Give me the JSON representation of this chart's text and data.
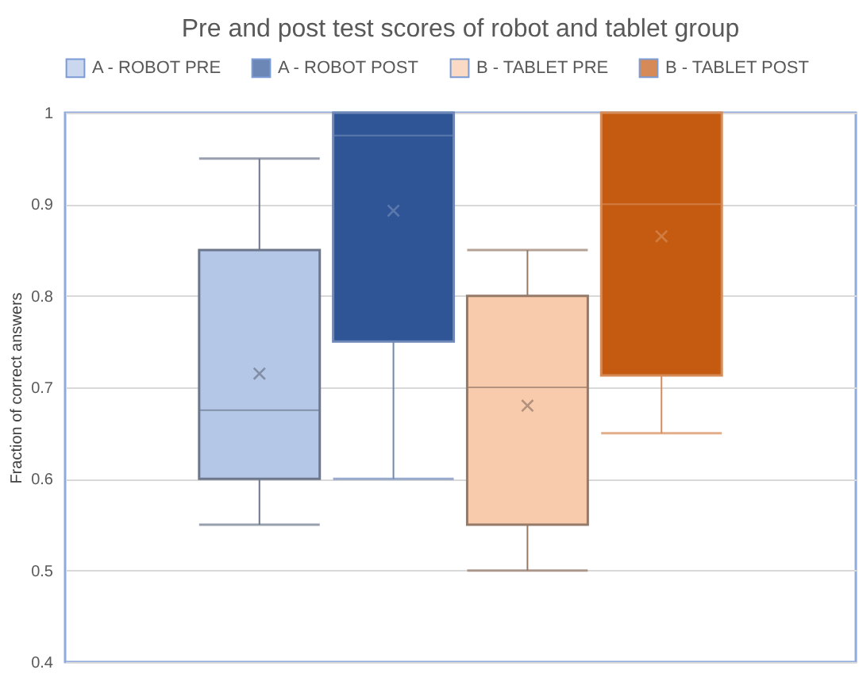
{
  "chart_data": {
    "type": "box",
    "title": "Pre and post test scores of robot and tablet group",
    "ylabel": "Fraction of correct answers",
    "categories": [
      null
    ],
    "ylim": [
      0.4,
      1
    ],
    "yticks": [
      0.4,
      0.5,
      0.6,
      0.7,
      0.8,
      0.9,
      1
    ],
    "grid": "y",
    "legend": "top",
    "marker": "cross",
    "series": [
      {
        "name": "A - ROBOT PRE",
        "color": "#b4c7e7",
        "boxes": [
          {
            "low": 0.55,
            "q1": 0.6,
            "median": 0.675,
            "q3": 0.85,
            "high": 0.95,
            "mean": 0.715
          }
        ]
      },
      {
        "name": "A - ROBOT POST",
        "color": "#2f5597",
        "boxes": [
          {
            "low": 0.6,
            "q1": 0.75,
            "median": 0.975,
            "q3": 1,
            "high": 1,
            "mean": 0.893
          }
        ]
      },
      {
        "name": "B - TABLET PRE",
        "color": "#f8cbad",
        "boxes": [
          {
            "low": 0.5,
            "q1": 0.55,
            "median": 0.7,
            "q3": 0.8,
            "high": 0.85,
            "mean": 0.68
          }
        ]
      },
      {
        "name": "B - TABLET POST",
        "color": "#c55a11",
        "boxes": [
          {
            "low": 0.65,
            "q1": 0.713,
            "median": 0.9,
            "q3": 1,
            "high": 1,
            "mean": 0.865
          }
        ]
      }
    ]
  }
}
